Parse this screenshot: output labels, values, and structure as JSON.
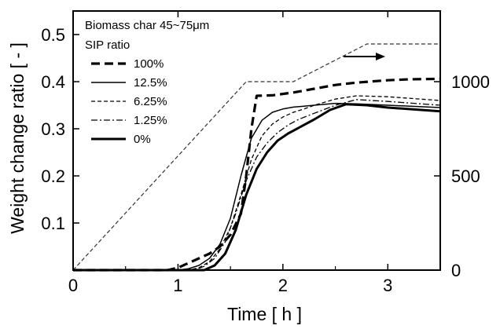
{
  "chart_data": {
    "type": "line",
    "xlabel": "Time  [ h ]",
    "ylabel": "Weight change ratio  [ - ]",
    "xlim": [
      0,
      3.5
    ],
    "ylim": [
      0,
      0.55
    ],
    "y2lim": [
      0,
      1375
    ],
    "xticks": [
      "0",
      "1",
      "2",
      "3"
    ],
    "yticks": [
      "0.1",
      "0.2",
      "0.3",
      "0.4",
      "0.5"
    ],
    "y2ticks": [
      "0",
      "500",
      "1000"
    ],
    "legend": {
      "title_line1": "Biomass char 45~75μm",
      "title_line2": "SIP ratio",
      "placement": "top-left"
    },
    "series": [
      {
        "name": "100%",
        "style": "dash-thick",
        "x": [
          0,
          0.9,
          1.0,
          1.1,
          1.2,
          1.3,
          1.4,
          1.5,
          1.6,
          1.65,
          1.7,
          1.75,
          1.9,
          2.1,
          2.3,
          2.5,
          2.7,
          3.0,
          3.2,
          3.5
        ],
        "y": [
          0,
          0,
          0.005,
          0.015,
          0.025,
          0.035,
          0.05,
          0.075,
          0.12,
          0.2,
          0.3,
          0.37,
          0.371,
          0.377,
          0.385,
          0.393,
          0.398,
          0.403,
          0.405,
          0.406
        ]
      },
      {
        "name": "12.5%",
        "style": "solid-thin",
        "x": [
          0,
          1.0,
          1.1,
          1.2,
          1.3,
          1.4,
          1.5,
          1.6,
          1.7,
          1.8,
          1.9,
          2.0,
          2.1,
          2.2,
          2.3,
          2.5,
          2.7,
          3.0,
          3.5
        ],
        "y": [
          0,
          0,
          0.003,
          0.01,
          0.025,
          0.055,
          0.11,
          0.2,
          0.28,
          0.318,
          0.335,
          0.342,
          0.346,
          0.348,
          0.35,
          0.354,
          0.353,
          0.35,
          0.345
        ]
      },
      {
        "name": "6.25%",
        "style": "dash-thin",
        "x": [
          0,
          1.1,
          1.2,
          1.3,
          1.4,
          1.5,
          1.6,
          1.7,
          1.8,
          1.9,
          2.0,
          2.1,
          2.2,
          2.3,
          2.5,
          2.7,
          3.0,
          3.5
        ],
        "y": [
          0,
          0,
          0.005,
          0.018,
          0.045,
          0.09,
          0.16,
          0.235,
          0.285,
          0.31,
          0.325,
          0.335,
          0.342,
          0.35,
          0.363,
          0.37,
          0.368,
          0.36
        ]
      },
      {
        "name": "1.25%",
        "style": "dashdot",
        "x": [
          0,
          1.15,
          1.25,
          1.35,
          1.45,
          1.55,
          1.65,
          1.75,
          1.85,
          1.95,
          2.05,
          2.15,
          2.3,
          2.5,
          2.7,
          3.0,
          3.5
        ],
        "y": [
          0,
          0,
          0.008,
          0.025,
          0.06,
          0.12,
          0.19,
          0.24,
          0.27,
          0.292,
          0.308,
          0.32,
          0.333,
          0.35,
          0.362,
          0.358,
          0.35
        ]
      },
      {
        "name": "0%",
        "style": "solid-thick",
        "x": [
          0,
          1.25,
          1.35,
          1.45,
          1.55,
          1.65,
          1.75,
          1.85,
          1.95,
          2.05,
          2.15,
          2.3,
          2.45,
          2.6,
          2.8,
          3.0,
          3.5
        ],
        "y": [
          0,
          0,
          0.01,
          0.035,
          0.085,
          0.16,
          0.215,
          0.25,
          0.275,
          0.29,
          0.302,
          0.32,
          0.34,
          0.352,
          0.35,
          0.345,
          0.337
        ]
      }
    ],
    "temperature_program": {
      "axis": "right",
      "style": "dash-thin",
      "x": [
        0,
        1.65,
        2.1,
        2.8,
        3.5
      ],
      "y": [
        0,
        1000,
        1000,
        1200,
        1200
      ]
    },
    "arrow_annotation": {
      "points_to": "right-axis"
    }
  }
}
